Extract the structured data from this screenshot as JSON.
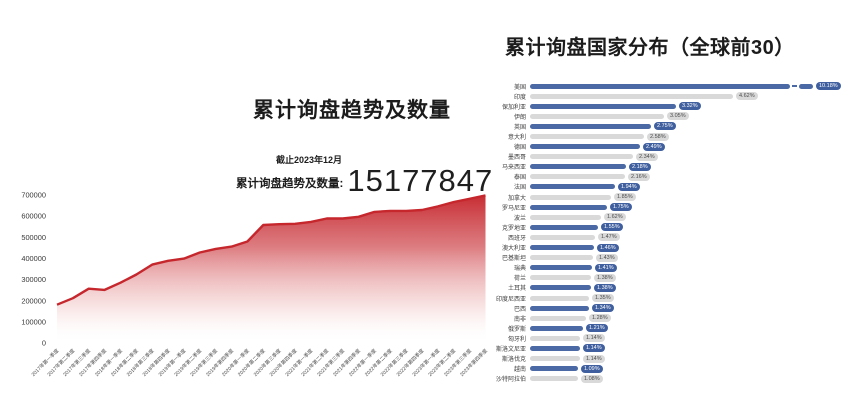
{
  "trend": {
    "title": "累计询盘趋势及数量",
    "asof": "截止2023年12月",
    "total_label": "累计询盘趋势及数量:",
    "total_value": "15177847"
  },
  "colors": {
    "area_red": "#c5272d",
    "bar_blue": "#4a69a5",
    "badge_blue": "#3f5f9f",
    "bar_gray": "#d9d9d9",
    "text_dark": "#1c1c1c"
  },
  "chart_data": [
    {
      "type": "area",
      "title": "累计询盘趋势及数量",
      "x": [
        "2017年第一季度",
        "2017年第二季度",
        "2017年第三季度",
        "2017年第四季度",
        "2018年第一季度",
        "2018年第二季度",
        "2018年第三季度",
        "2018年第四季度",
        "2019年第一季度",
        "2019年第二季度",
        "2019年第三季度",
        "2019年第四季度",
        "2020年第一季度",
        "2020年第二季度",
        "2020年第三季度",
        "2020年第四季度",
        "2021年第一季度",
        "2021年第二季度",
        "2021年第三季度",
        "2021年第四季度",
        "2022年第一季度",
        "2022年第二季度",
        "2022年第三季度",
        "2022年第四季度",
        "2023年第一季度",
        "2023年第二季度",
        "2023年第三季度",
        "2023年第四季度"
      ],
      "values": [
        181000,
        212000,
        257000,
        251000,
        285000,
        324000,
        371000,
        389000,
        399000,
        428000,
        445000,
        456000,
        480000,
        558000,
        562000,
        564000,
        573000,
        589000,
        589000,
        597000,
        620000,
        625000,
        625000,
        629000,
        646000,
        667000,
        682000,
        698000
      ],
      "ylim": [
        0,
        700000
      ],
      "yticks": [
        0,
        100000,
        200000,
        300000,
        400000,
        500000,
        600000,
        700000
      ],
      "grid": false,
      "legend": false,
      "color": "#c5272d"
    },
    {
      "type": "bar",
      "orientation": "horizontal",
      "title": "累计询盘国家分布（全球前30）",
      "categories": [
        "美国",
        "印度",
        "保加利亚",
        "伊朗",
        "英国",
        "意大利",
        "德国",
        "墨西哥",
        "马来西亚",
        "泰国",
        "法国",
        "加拿大",
        "罗马尼亚",
        "波兰",
        "克罗地亚",
        "西班牙",
        "澳大利亚",
        "巴基斯坦",
        "瑞典",
        "荷兰",
        "土耳其",
        "印度尼西亚",
        "巴西",
        "南非",
        "俄罗斯",
        "匈牙利",
        "斯洛文尼亚",
        "斯洛伐克",
        "越南",
        "沙特阿拉伯"
      ],
      "values": [
        10.18,
        4.62,
        3.32,
        3.05,
        2.75,
        2.58,
        2.49,
        2.34,
        2.18,
        2.16,
        1.94,
        1.85,
        1.75,
        1.62,
        1.55,
        1.47,
        1.46,
        1.43,
        1.41,
        1.38,
        1.38,
        1.35,
        1.34,
        1.28,
        1.21,
        1.14,
        1.14,
        1.14,
        1.09,
        1.08
      ],
      "value_labels": [
        "10.18%",
        "4.62%",
        "3.32%",
        "3.05%",
        "2.75%",
        "2.58%",
        "2.49%",
        "2.34%",
        "2.18%",
        "2.16%",
        "1.94%",
        "1.85%",
        "1.75%",
        "1.62%",
        "1.55%",
        "1.47%",
        "1.46%",
        "1.43%",
        "1.41%",
        "1.38%",
        "1.38%",
        "1.35%",
        "1.34%",
        "1.28%",
        "1.21%",
        "1.14%",
        "1.14%",
        "1.14%",
        "1.09%",
        "1.08%"
      ],
      "broken_axis_first_bar": true,
      "bar_color_pattern": "alternating blue/gray",
      "legend": false
    }
  ]
}
